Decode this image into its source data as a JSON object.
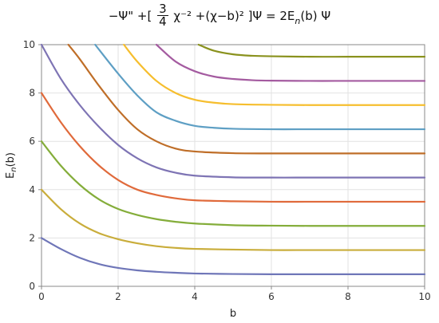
{
  "title": {
    "part1": "−Ψ\" +[",
    "frac_num": "3",
    "frac_den": "4",
    "part2": "χ⁻² +(χ−b)² ]Ψ = 2E",
    "sub": "n",
    "part3": "(b) Ψ"
  },
  "chart_data": {
    "type": "line",
    "xlabel": "b",
    "ylabel_main": "E",
    "ylabel_sub": "n",
    "ylabel_tail": "(b)",
    "xlim": [
      0,
      10
    ],
    "ylim": [
      0,
      10
    ],
    "x_ticks": [
      "0",
      "2",
      "4",
      "6",
      "8",
      "10"
    ],
    "y_ticks": [
      "0",
      "2",
      "4",
      "6",
      "8",
      "10"
    ],
    "grid": true,
    "series": [
      {
        "n": 0,
        "color": "#6f76b8",
        "x": [
          0,
          0.5,
          1,
          1.5,
          2,
          2.5,
          3,
          3.5,
          4,
          5,
          6,
          7,
          8,
          9,
          10
        ],
        "y": [
          2.0,
          1.55,
          1.18,
          0.92,
          0.76,
          0.66,
          0.6,
          0.56,
          0.53,
          0.51,
          0.5,
          0.5,
          0.5,
          0.5,
          0.5
        ]
      },
      {
        "n": 1,
        "color": "#c9ad3b",
        "x": [
          0,
          0.5,
          1,
          1.5,
          2,
          2.5,
          3,
          3.5,
          4,
          5,
          6,
          7,
          8,
          9,
          10
        ],
        "y": [
          4.0,
          3.2,
          2.6,
          2.2,
          1.95,
          1.78,
          1.66,
          1.59,
          1.55,
          1.52,
          1.5,
          1.5,
          1.5,
          1.5,
          1.5
        ]
      },
      {
        "n": 2,
        "color": "#84ad3a",
        "x": [
          0,
          0.5,
          1,
          1.5,
          2,
          2.5,
          3,
          3.5,
          4,
          5,
          6,
          7,
          8,
          9,
          10
        ],
        "y": [
          6.0,
          5.0,
          4.2,
          3.6,
          3.2,
          2.95,
          2.78,
          2.67,
          2.6,
          2.53,
          2.51,
          2.5,
          2.5,
          2.5,
          2.5
        ]
      },
      {
        "n": 3,
        "color": "#e06a3b",
        "x": [
          0,
          0.5,
          1,
          1.5,
          2,
          2.5,
          3,
          3.5,
          4,
          5,
          6,
          7,
          8,
          9,
          10
        ],
        "y": [
          8.0,
          6.8,
          5.8,
          5.0,
          4.4,
          4.0,
          3.78,
          3.64,
          3.56,
          3.52,
          3.5,
          3.5,
          3.5,
          3.5,
          3.5
        ]
      },
      {
        "n": 4,
        "color": "#7e74b4",
        "x": [
          0,
          0.5,
          1,
          1.5,
          2,
          2.5,
          3,
          3.5,
          4,
          5,
          6,
          7,
          8,
          9,
          10
        ],
        "y": [
          10.0,
          8.6,
          7.5,
          6.6,
          5.85,
          5.3,
          4.92,
          4.7,
          4.58,
          4.51,
          4.5,
          4.5,
          4.5,
          4.5,
          4.5
        ]
      },
      {
        "n": 5,
        "color": "#bf6e28",
        "x": [
          0.7,
          1,
          1.5,
          2,
          2.5,
          3,
          3.5,
          4,
          5,
          6,
          7,
          8,
          9,
          10
        ],
        "y": [
          10.0,
          9.4,
          8.3,
          7.3,
          6.5,
          6.0,
          5.7,
          5.58,
          5.51,
          5.5,
          5.5,
          5.5,
          5.5,
          5.5
        ]
      },
      {
        "n": 6,
        "color": "#5e9fc4",
        "x": [
          1.4,
          2,
          2.5,
          3,
          3.5,
          4,
          4.5,
          5,
          6,
          7,
          8,
          9,
          10
        ],
        "y": [
          10.0,
          8.8,
          7.9,
          7.2,
          6.85,
          6.64,
          6.56,
          6.52,
          6.5,
          6.5,
          6.5,
          6.5,
          6.5
        ]
      },
      {
        "n": 7,
        "color": "#f6be2e",
        "x": [
          2.15,
          2.5,
          3,
          3.5,
          4,
          4.5,
          5,
          6,
          7,
          8,
          9,
          10
        ],
        "y": [
          10.0,
          9.3,
          8.5,
          8.0,
          7.72,
          7.6,
          7.54,
          7.51,
          7.5,
          7.5,
          7.5,
          7.5
        ]
      },
      {
        "n": 8,
        "color": "#a45ba0",
        "x": [
          3.0,
          3.5,
          4,
          4.5,
          5,
          5.5,
          6,
          7,
          8,
          9,
          10
        ],
        "y": [
          10.0,
          9.3,
          8.9,
          8.68,
          8.58,
          8.53,
          8.51,
          8.5,
          8.5,
          8.5,
          8.5
        ]
      },
      {
        "n": 9,
        "color": "#8a921e",
        "x": [
          4.1,
          4.5,
          5,
          5.5,
          6,
          7,
          8,
          9,
          10
        ],
        "y": [
          10.0,
          9.75,
          9.6,
          9.54,
          9.52,
          9.5,
          9.5,
          9.5,
          9.5
        ]
      }
    ]
  }
}
